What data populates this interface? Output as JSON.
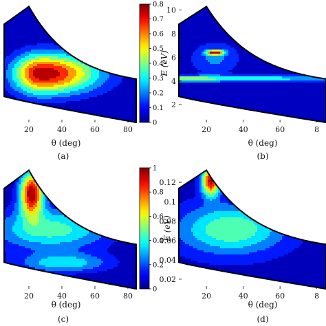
{
  "chart_data": [
    {
      "type": "heatmap",
      "panel": "(a)",
      "xlabel": "θ (deg)",
      "ylabel": "",
      "xlim": [
        5,
        85
      ],
      "ylim": [
        0.5,
        10.5
      ],
      "xticks": [
        "20",
        "40",
        "60",
        "80"
      ],
      "yticks": [],
      "colorbar": {
        "min": 0,
        "max": 0.8,
        "ticks": [
          "0",
          "0.1",
          "0.2",
          "0.3",
          "0.4",
          "0.5",
          "0.6",
          "0.7",
          "0.8"
        ]
      },
      "peak": {
        "x": 28,
        "y": 4.2,
        "value": 0.78
      }
    },
    {
      "type": "heatmap",
      "panel": "(b)",
      "xlabel": "θ (deg)",
      "ylabel": "E (eV)",
      "xlim": [
        5,
        85
      ],
      "ylim": [
        0.5,
        10.5
      ],
      "xticks": [
        "20",
        "40",
        "60",
        "8"
      ],
      "yticks": [
        "2",
        "4",
        "6",
        "8",
        "10"
      ],
      "peak": {
        "x": 24,
        "y": 6.8,
        "value": 0.8
      }
    },
    {
      "type": "heatmap",
      "panel": "(c)",
      "xlabel": "θ (deg)",
      "ylabel": "",
      "xlim": [
        5,
        85
      ],
      "ylim": [
        0.01,
        0.135
      ],
      "xticks": [
        "20",
        "40",
        "60",
        "80"
      ],
      "yticks": [],
      "colorbar": {
        "min": 0,
        "max": 1,
        "ticks": [
          "0",
          "0.2",
          "0.4",
          "0.6",
          "0.8",
          "1"
        ]
      },
      "peak": {
        "x": 21,
        "y": 0.115,
        "value": 0.98
      }
    },
    {
      "type": "heatmap",
      "panel": "(d)",
      "xlabel": "θ (deg)",
      "ylabel": "E (eV)",
      "xlim": [
        5,
        85
      ],
      "ylim": [
        0.01,
        0.135
      ],
      "xticks": [
        "20",
        "40",
        "60",
        "8"
      ],
      "yticks": [
        "0.02",
        "0.04",
        "0.06",
        "0.08",
        "0.1",
        "0.12"
      ],
      "peak": {
        "x": 20,
        "y": 0.125,
        "value": 0.9
      }
    }
  ]
}
